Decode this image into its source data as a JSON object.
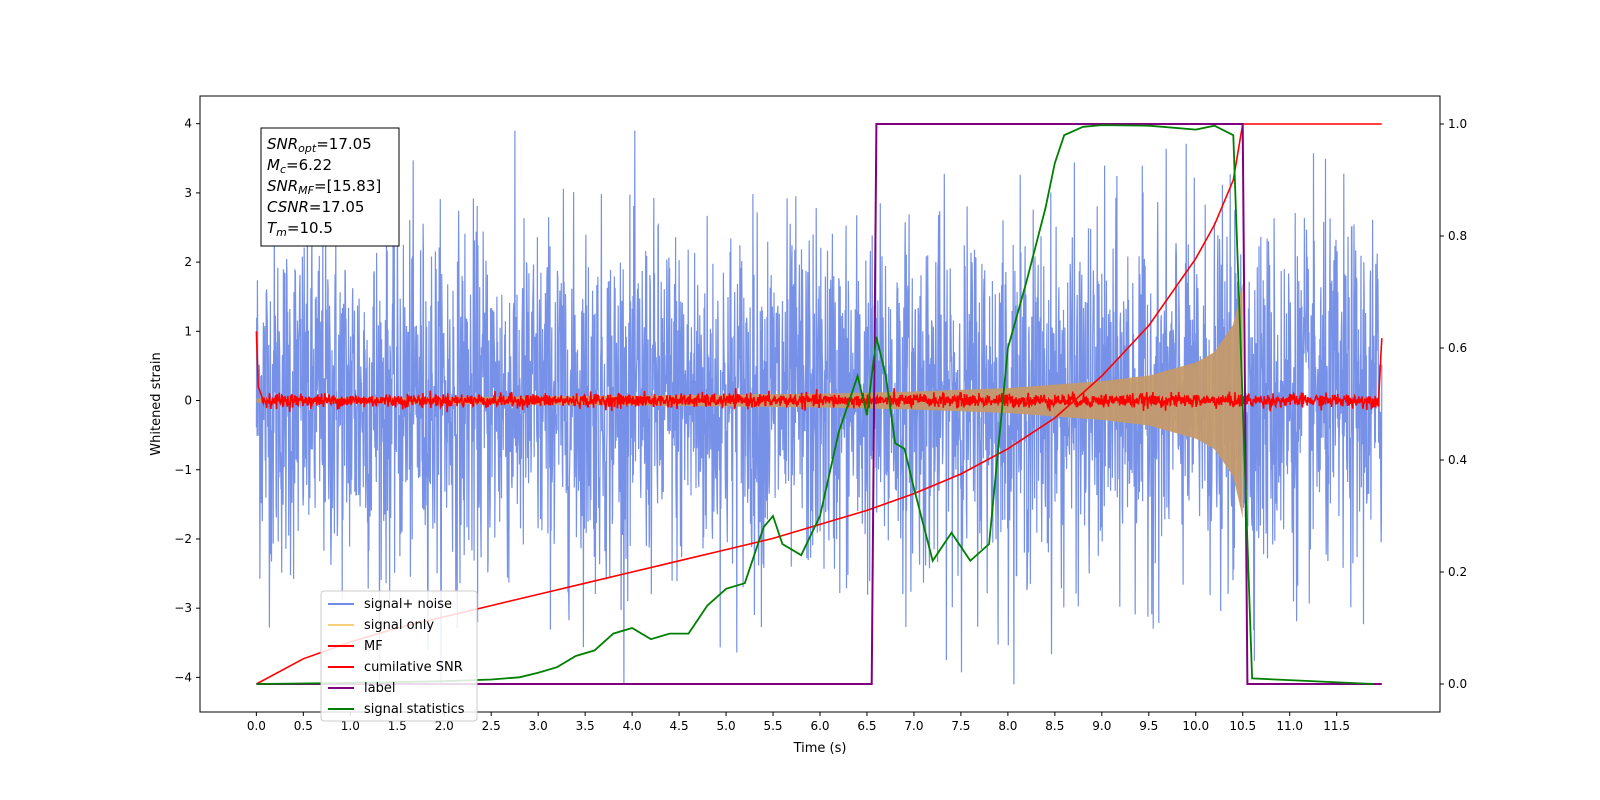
{
  "chart_data": {
    "type": "line",
    "xlabel": "Time (s)",
    "ylabel": "Whitened strain",
    "xlim": [
      -0.6,
      12.6
    ],
    "ylim_left": [
      -4.5,
      4.4
    ],
    "ylim_right": [
      -0.05,
      1.05
    ],
    "x_ticks": [
      "0.0",
      "0.5",
      "1.0",
      "1.5",
      "2.0",
      "2.5",
      "3.0",
      "3.5",
      "4.0",
      "4.5",
      "5.0",
      "5.5",
      "6.0",
      "6.5",
      "7.0",
      "7.5",
      "8.0",
      "8.5",
      "9.0",
      "9.5",
      "10.0",
      "10.5",
      "11.0",
      "11.5"
    ],
    "y_ticks_left": [
      "4",
      "3",
      "2",
      "1",
      "0",
      "−1",
      "−2",
      "−3",
      "−4"
    ],
    "y_ticks_right": [
      "1.0",
      "0.8",
      "0.6",
      "0.4",
      "0.2",
      "0.0"
    ],
    "legend": {
      "placement": "lower-left",
      "entries": [
        {
          "label": "signal+ noise",
          "color": "#6f8be6"
        },
        {
          "label": "signal only",
          "color": "#f5cf7a"
        },
        {
          "label": "MF",
          "color": "#ff0000"
        },
        {
          "label": "cumilative SNR",
          "color": "#ff0000"
        },
        {
          "label": "label",
          "color": "#800080"
        },
        {
          "label": "signal statistics",
          "color": "#008000"
        }
      ]
    },
    "annotation": {
      "lines": [
        {
          "sym": "SNR",
          "sub": "opt",
          "val": "=17.05"
        },
        {
          "sym": "M",
          "sub": "c",
          "val": "=6.22"
        },
        {
          "sym": "SNR",
          "sub": "MF",
          "val": "=[15.83]"
        },
        {
          "sym": "CSNR",
          "sub": "",
          "val": "=17.05"
        },
        {
          "sym": "T",
          "sub": "m",
          "val": "=10.5"
        }
      ]
    },
    "series": [
      {
        "name": "signal+ noise",
        "axis": "left",
        "color": "#6f8be6",
        "kind": "noise",
        "std": 1.0,
        "x_range": [
          0,
          11.98
        ]
      },
      {
        "name": "signal only",
        "axis": "left",
        "color": "#c49a6c",
        "kind": "chirp-envelope",
        "merger_time": 10.5,
        "envelope_x": [
          0,
          2,
          4,
          6,
          7,
          8,
          9,
          9.5,
          10,
          10.2,
          10.4,
          10.5
        ],
        "envelope_y": [
          0.03,
          0.05,
          0.07,
          0.1,
          0.13,
          0.18,
          0.28,
          0.36,
          0.55,
          0.7,
          1.1,
          1.7
        ]
      },
      {
        "name": "MF",
        "axis": "left",
        "color": "#ff0000",
        "kind": "noise",
        "std": 0.05,
        "x_range": [
          0,
          11.98
        ],
        "edge_x": [
          0,
          0.02,
          0.06,
          11.95,
          11.98
        ],
        "edge_y": [
          1.0,
          0.2,
          0.05,
          0.1,
          0.9
        ]
      },
      {
        "name": "cumilative SNR",
        "axis": "right",
        "color": "#ff0000",
        "x": [
          0,
          0.5,
          1,
          1.5,
          2,
          2.5,
          3,
          3.5,
          4,
          4.5,
          5,
          5.5,
          6,
          6.5,
          7,
          7.5,
          8,
          8.5,
          9,
          9.5,
          10,
          10.2,
          10.4,
          10.5,
          11.98
        ],
        "y": [
          0.0,
          0.045,
          0.075,
          0.1,
          0.12,
          0.14,
          0.16,
          0.18,
          0.2,
          0.22,
          0.24,
          0.26,
          0.285,
          0.31,
          0.34,
          0.375,
          0.42,
          0.475,
          0.55,
          0.64,
          0.76,
          0.82,
          0.9,
          1.0,
          1.0
        ]
      },
      {
        "name": "label",
        "axis": "right",
        "color": "#800080",
        "x": [
          0,
          6.55,
          6.6,
          10.5,
          10.55,
          11.98
        ],
        "y": [
          0,
          0,
          1,
          1,
          0,
          0
        ]
      },
      {
        "name": "signal statistics",
        "axis": "right",
        "color": "#008000",
        "x": [
          0,
          1,
          2,
          2.5,
          2.8,
          3.0,
          3.2,
          3.4,
          3.6,
          3.8,
          4.0,
          4.2,
          4.4,
          4.6,
          4.8,
          5.0,
          5.2,
          5.4,
          5.5,
          5.6,
          5.8,
          6.0,
          6.2,
          6.3,
          6.4,
          6.5,
          6.6,
          6.7,
          6.8,
          6.9,
          7.0,
          7.2,
          7.4,
          7.6,
          7.8,
          8.0,
          8.2,
          8.4,
          8.5,
          8.6,
          8.8,
          9.0,
          9.5,
          10.0,
          10.2,
          10.4,
          10.5,
          10.6,
          11.9
        ],
        "y": [
          0.0,
          0.002,
          0.005,
          0.008,
          0.012,
          0.02,
          0.03,
          0.05,
          0.06,
          0.09,
          0.1,
          0.08,
          0.09,
          0.09,
          0.14,
          0.17,
          0.18,
          0.28,
          0.3,
          0.25,
          0.23,
          0.3,
          0.45,
          0.5,
          0.55,
          0.48,
          0.62,
          0.55,
          0.43,
          0.42,
          0.35,
          0.22,
          0.27,
          0.22,
          0.25,
          0.6,
          0.72,
          0.85,
          0.93,
          0.98,
          0.995,
          0.998,
          0.997,
          0.99,
          0.997,
          0.98,
          0.5,
          0.01,
          0.0
        ]
      }
    ]
  }
}
